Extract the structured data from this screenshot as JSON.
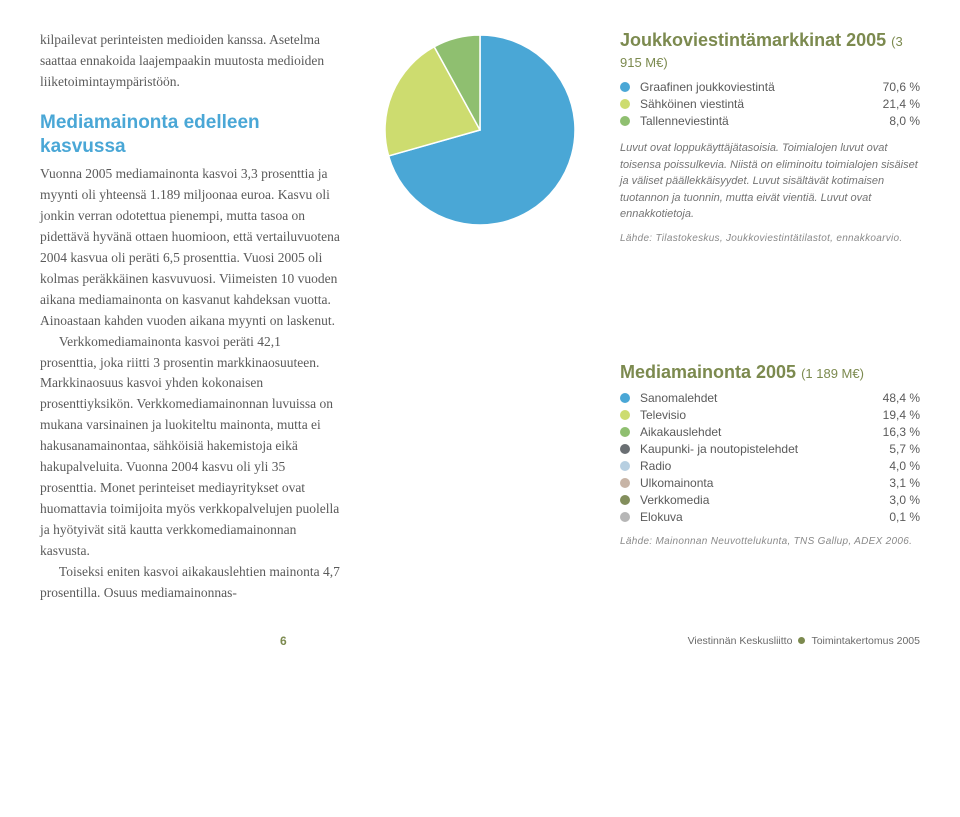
{
  "article": {
    "intro": "kilpailevat perinteisten medioiden kanssa. Asetelma saattaa ennakoida laajempaakin muutosta medioiden liiketoimintaympäristöön.",
    "heading": "Mediamainonta edelleen kasvussa",
    "body1": "Vuonna 2005 mediamainonta kasvoi 3,3 prosenttia ja myynti oli yhteensä 1.189 miljoonaa euroa. Kasvu oli jonkin verran odotettua pienempi, mutta tasoa on pidettävä hyvänä ottaen huomioon, että vertailuvuotena 2004 kasvua oli peräti 6,5 prosenttia. Vuosi 2005 oli kolmas peräkkäinen kasvuvuosi. Viimeisten 10 vuoden aikana mediamainonta on kasvanut kahdeksan vuotta. Ainoastaan kahden vuoden aikana myynti on laskenut.",
    "body2": "Verkkomediamainonta kasvoi peräti 42,1 prosenttia, joka riitti 3 prosentin markkinaosuuteen. Markkinaosuus kasvoi yhden kokonaisen prosenttiyksikön. Verkkomediamainonnan luvuissa on mukana varsinainen ja luokiteltu mainonta, mutta ei hakusanamainontaa, sähköisiä hakemistoja eikä hakupalveluita. Vuonna 2004 kasvu oli yli 35 prosenttia. Monet perinteiset mediayritykset ovat huomattavia toimijoita myös verkkopalvelujen puolella ja hyötyivät sitä kautta verkkomediamainonnan kasvusta.",
    "body3": "Toiseksi eniten kasvoi aikakauslehtien mainonta 4,7 prosentilla. Osuus mediamainonnas-"
  },
  "chart1": {
    "title": "Joukkoviestintämarkkinat 2005",
    "subtitle": "(3 915 M€)",
    "items": [
      {
        "label": "Graafinen joukkoviestintä",
        "value": "70,6 %",
        "pct": 70.6,
        "color": "#4aa7d6"
      },
      {
        "label": "Sähköinen viestintä",
        "value": "21,4 %",
        "pct": 21.4,
        "color": "#cddc6f"
      },
      {
        "label": "Tallenneviestintä",
        "value": "8,0 %",
        "pct": 8.0,
        "color": "#8fbf70"
      }
    ],
    "note": "Luvut ovat loppukäyttäjätasoisia. Toimialojen luvut ovat toisensa poissulkevia. Niistä on eliminoitu toimialojen sisäiset ja väliset päällekkäisyydet. Luvut sisältävät kotimaisen tuotannon ja tuonnin, mutta eivät vientiä. Luvut ovat ennakkotietoja.",
    "source": "Lähde: Tilastokeskus, Joukkoviestintätilastot, ennakkoarvio."
  },
  "chart2": {
    "title": "Mediamainonta 2005",
    "subtitle": "(1 189 M€)",
    "items": [
      {
        "label": "Sanomalehdet",
        "value": "48,4 %",
        "pct": 48.4,
        "color": "#4aa7d6"
      },
      {
        "label": "Televisio",
        "value": "19,4 %",
        "pct": 19.4,
        "color": "#cddc6f"
      },
      {
        "label": "Aikakauslehdet",
        "value": "16,3 %",
        "pct": 16.3,
        "color": "#8fbf70"
      },
      {
        "label": "Kaupunki- ja noutopistelehdet",
        "value": "5,7 %",
        "pct": 5.7,
        "color": "#6a6f73"
      },
      {
        "label": "Radio",
        "value": "4,0 %",
        "pct": 4.0,
        "color": "#b7cfe1"
      },
      {
        "label": "Ulkomainonta",
        "value": "3,1 %",
        "pct": 3.1,
        "color": "#c7b4a6"
      },
      {
        "label": "Verkkomedia",
        "value": "3,0 %",
        "pct": 3.0,
        "color": "#838e5c"
      },
      {
        "label": "Elokuva",
        "value": "0,1 %",
        "pct": 0.1,
        "color": "#b6b6b6"
      }
    ],
    "source": "Lähde: Mainonnan Neuvottelukunta, TNS Gallup, ADEX 2006."
  },
  "footer": {
    "page": "6",
    "org": "Viestinnän Keskusliitto",
    "doc": "Toimintakertomus 2005"
  },
  "pie_radius": 95,
  "pie2_radius": 0,
  "pie_start_angle": -90,
  "background": "#ffffff"
}
